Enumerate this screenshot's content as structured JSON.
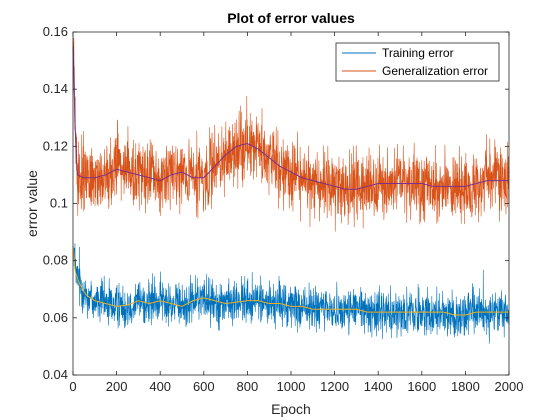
{
  "chart_data": {
    "type": "line",
    "title": "Plot of error values",
    "xlabel": "Epoch",
    "ylabel": "error value",
    "xlim": [
      0,
      2000
    ],
    "ylim": [
      0.04,
      0.16
    ],
    "xticks": [
      0,
      200,
      400,
      600,
      800,
      1000,
      1200,
      1400,
      1600,
      1800,
      2000
    ],
    "xtick_labels": [
      "0",
      "200",
      "400",
      "600",
      "800",
      "1000",
      "1200",
      "1400",
      "1600",
      "1800",
      "2000"
    ],
    "yticks": [
      0.04,
      0.06,
      0.08,
      0.1,
      0.12,
      0.14,
      0.16
    ],
    "ytick_labels": [
      "0.04",
      "0.06",
      "0.08",
      "0.1",
      "0.12",
      "0.14",
      "0.16"
    ],
    "legend_position": "top-right",
    "grid": false,
    "series": [
      {
        "name": "Training error",
        "color": "#0072BD",
        "noise_amplitude": 0.0055,
        "points": [
          {
            "x": 1,
            "y": 0.085
          },
          {
            "x": 10,
            "y": 0.076
          },
          {
            "x": 30,
            "y": 0.072
          },
          {
            "x": 60,
            "y": 0.068
          },
          {
            "x": 100,
            "y": 0.066
          },
          {
            "x": 150,
            "y": 0.065
          },
          {
            "x": 200,
            "y": 0.064
          },
          {
            "x": 250,
            "y": 0.0645
          },
          {
            "x": 300,
            "y": 0.066
          },
          {
            "x": 350,
            "y": 0.065
          },
          {
            "x": 400,
            "y": 0.066
          },
          {
            "x": 450,
            "y": 0.065
          },
          {
            "x": 500,
            "y": 0.064
          },
          {
            "x": 550,
            "y": 0.066
          },
          {
            "x": 600,
            "y": 0.067
          },
          {
            "x": 650,
            "y": 0.066
          },
          {
            "x": 700,
            "y": 0.065
          },
          {
            "x": 750,
            "y": 0.0655
          },
          {
            "x": 800,
            "y": 0.066
          },
          {
            "x": 850,
            "y": 0.066
          },
          {
            "x": 900,
            "y": 0.065
          },
          {
            "x": 950,
            "y": 0.065
          },
          {
            "x": 1000,
            "y": 0.064
          },
          {
            "x": 1050,
            "y": 0.064
          },
          {
            "x": 1100,
            "y": 0.063
          },
          {
            "x": 1150,
            "y": 0.063
          },
          {
            "x": 1200,
            "y": 0.063
          },
          {
            "x": 1250,
            "y": 0.063
          },
          {
            "x": 1300,
            "y": 0.063
          },
          {
            "x": 1350,
            "y": 0.062
          },
          {
            "x": 1400,
            "y": 0.062
          },
          {
            "x": 1450,
            "y": 0.062
          },
          {
            "x": 1500,
            "y": 0.062
          },
          {
            "x": 1550,
            "y": 0.062
          },
          {
            "x": 1600,
            "y": 0.062
          },
          {
            "x": 1650,
            "y": 0.062
          },
          {
            "x": 1700,
            "y": 0.062
          },
          {
            "x": 1750,
            "y": 0.061
          },
          {
            "x": 1800,
            "y": 0.061
          },
          {
            "x": 1850,
            "y": 0.062
          },
          {
            "x": 1900,
            "y": 0.062
          },
          {
            "x": 1950,
            "y": 0.062
          },
          {
            "x": 2000,
            "y": 0.062
          }
        ]
      },
      {
        "name": "Generalization error",
        "color": "#D95319",
        "noise_amplitude": 0.0085,
        "points": [
          {
            "x": 1,
            "y": 0.155
          },
          {
            "x": 10,
            "y": 0.125
          },
          {
            "x": 20,
            "y": 0.11
          },
          {
            "x": 50,
            "y": 0.109
          },
          {
            "x": 100,
            "y": 0.109
          },
          {
            "x": 150,
            "y": 0.11
          },
          {
            "x": 200,
            "y": 0.112
          },
          {
            "x": 250,
            "y": 0.111
          },
          {
            "x": 300,
            "y": 0.11
          },
          {
            "x": 350,
            "y": 0.109
          },
          {
            "x": 400,
            "y": 0.108
          },
          {
            "x": 450,
            "y": 0.11
          },
          {
            "x": 500,
            "y": 0.111
          },
          {
            "x": 550,
            "y": 0.109
          },
          {
            "x": 600,
            "y": 0.109
          },
          {
            "x": 650,
            "y": 0.113
          },
          {
            "x": 700,
            "y": 0.117
          },
          {
            "x": 750,
            "y": 0.12
          },
          {
            "x": 800,
            "y": 0.121
          },
          {
            "x": 850,
            "y": 0.119
          },
          {
            "x": 900,
            "y": 0.116
          },
          {
            "x": 950,
            "y": 0.113
          },
          {
            "x": 1000,
            "y": 0.111
          },
          {
            "x": 1050,
            "y": 0.109
          },
          {
            "x": 1100,
            "y": 0.108
          },
          {
            "x": 1150,
            "y": 0.107
          },
          {
            "x": 1200,
            "y": 0.106
          },
          {
            "x": 1250,
            "y": 0.105
          },
          {
            "x": 1300,
            "y": 0.105
          },
          {
            "x": 1350,
            "y": 0.106
          },
          {
            "x": 1400,
            "y": 0.107
          },
          {
            "x": 1450,
            "y": 0.107
          },
          {
            "x": 1500,
            "y": 0.107
          },
          {
            "x": 1550,
            "y": 0.107
          },
          {
            "x": 1600,
            "y": 0.107
          },
          {
            "x": 1650,
            "y": 0.106
          },
          {
            "x": 1700,
            "y": 0.106
          },
          {
            "x": 1750,
            "y": 0.106
          },
          {
            "x": 1800,
            "y": 0.106
          },
          {
            "x": 1850,
            "y": 0.107
          },
          {
            "x": 1900,
            "y": 0.108
          },
          {
            "x": 1950,
            "y": 0.108
          },
          {
            "x": 2000,
            "y": 0.108
          }
        ]
      }
    ],
    "trend_lines": [
      {
        "color": "#EDB120",
        "series_index": 0
      },
      {
        "color": "#7E2F8E",
        "series_index": 1
      }
    ]
  }
}
